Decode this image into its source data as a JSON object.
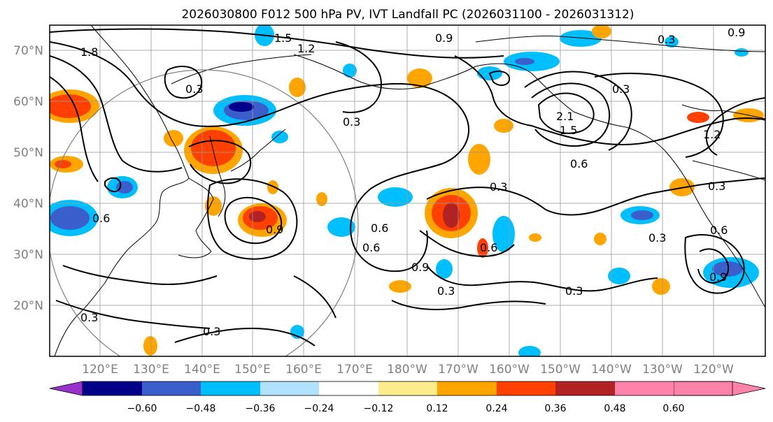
{
  "title": "2026030800 F012 500 hPa PV, IVT Landfall PC (2026031100 - 2026031312)",
  "lat_labels": [
    "70°N",
    "60°N",
    "50°N",
    "40°N",
    "30°N",
    "20°N"
  ],
  "lon_labels": [
    "120°E",
    "130°E",
    "140°E",
    "150°E",
    "160°E",
    "170°E",
    "180°W",
    "170°W",
    "160°W",
    "150°W",
    "140°W",
    "130°W",
    "120°W"
  ],
  "colorbar": {
    "ticks": [
      "−0.60",
      "−0.48",
      "−0.36",
      "−0.24",
      "−0.12",
      "0.12",
      "0.24",
      "0.36",
      "0.48",
      "0.60"
    ],
    "colors": [
      "#9932cc",
      "#00008b",
      "#3a5fcd",
      "#00bfff",
      "#b0e2ff",
      "#ffffff",
      "#ffec8b",
      "#ffa500",
      "#ff4000",
      "#b22222",
      "#ff82ab"
    ]
  },
  "contour_labels": [
    "0.3",
    "0.3",
    "0.3",
    "0.3",
    "0.3",
    "0.3",
    "0.3",
    "0.3",
    "0.3",
    "0.3",
    "0.3",
    "0.6",
    "0.6",
    "0.6",
    "0.6",
    "0.6",
    "0.6",
    "0.9",
    "0.9",
    "0.9",
    "0.9",
    "0.9",
    "1.2",
    "1.2",
    "1.5",
    "1.5",
    "1.8",
    "2.1"
  ]
}
